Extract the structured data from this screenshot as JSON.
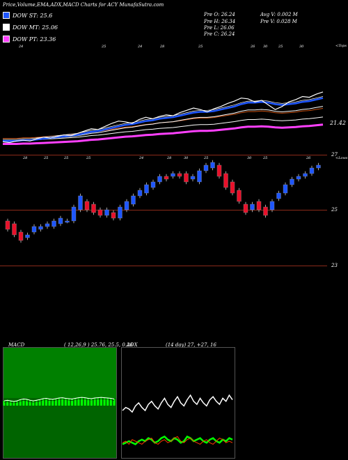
{
  "header": {
    "title": "Price,Volume,EMA,ADX,MACD Charts for ACY MunafaSutra.com",
    "open": "Pre  O: 26.24",
    "high": "Pre  H: 26.34",
    "low": "Pre  L: 26.06",
    "close": "Pre  C: 26.24",
    "avg_vol": "Avg V: 0.002  M",
    "pre_vol": "Pre  V: 0.028 M"
  },
  "legend": [
    {
      "label": "DOW ST: 25.6",
      "color": "#1e56ff"
    },
    {
      "label": "DOW MT: 25.06",
      "color": "#ffffff"
    },
    {
      "label": "DOW PT: 23.36",
      "color": "#ff40ff"
    }
  ],
  "ema_panel": {
    "date_labels": [
      "24",
      "25",
      "24",
      "28",
      "25",
      "26",
      "30",
      "25",
      "30"
    ],
    "price_label": "21.42",
    "corner_label": "<Tops"
  },
  "candle_panel": {
    "date_labels": [
      "28",
      "25",
      "25",
      "25",
      "24",
      "28",
      "30",
      "25",
      "30",
      "25",
      "26"
    ],
    "price_labels": [
      "27",
      "25",
      "23"
    ],
    "corner_label": "<Lows"
  },
  "macd": {
    "label": "MACD",
    "params": "( 12,26,9 ) 25.76,  25.5,  0.26"
  },
  "adx": {
    "label": "ADX",
    "params": "(14  day) 27,  +27,  16"
  },
  "colors": {
    "accent": "#1e56ff",
    "candle_up": "#1e56ff",
    "candle_down": "#e8102a",
    "support": "#8b2a1a",
    "macd_fill": "#00ff00",
    "adx_plus": "#00ff00",
    "adx_minus": "#ff3b00"
  },
  "chart_data": [
    {
      "type": "line",
      "name": "price_ema",
      "y": [
        20.4,
        20.3,
        20.5,
        20.6,
        20.5,
        20.8,
        21.0,
        20.9,
        21.1,
        21.3,
        21.2,
        21.5,
        21.8,
        22.1,
        22.0,
        22.4,
        22.8,
        23.1,
        23.0,
        22.8,
        23.3,
        23.6,
        23.4,
        23.7,
        23.9,
        23.8,
        24.2,
        24.5,
        24.8,
        24.6,
        24.3,
        24.7,
        25.0,
        25.4,
        25.7,
        26.1,
        26.0,
        25.6,
        25.8,
        25.2,
        24.6,
        25.0,
        25.6,
        25.9,
        26.3,
        26.2,
        26.6,
        26.9
      ],
      "ema_short": [
        20.5,
        20.5,
        20.5,
        20.6,
        20.6,
        20.7,
        20.8,
        20.9,
        21.0,
        21.1,
        21.2,
        21.3,
        21.5,
        21.7,
        21.8,
        22.0,
        22.2,
        22.4,
        22.6,
        22.7,
        22.9,
        23.1,
        23.2,
        23.4,
        23.5,
        23.6,
        23.8,
        24.0,
        24.2,
        24.3,
        24.3,
        24.4,
        24.6,
        24.8,
        25.0,
        25.3,
        25.5,
        25.5,
        25.6,
        25.5,
        25.3,
        25.2,
        25.3,
        25.4,
        25.6,
        25.7,
        25.9,
        26.1
      ]
    },
    {
      "type": "bar",
      "name": "candles",
      "x": [
        1,
        2,
        3,
        4,
        5,
        6,
        7,
        8,
        9,
        10,
        11,
        12,
        13,
        14,
        15,
        16,
        17,
        18,
        19,
        20,
        21,
        22,
        23,
        24,
        25,
        26,
        27,
        28,
        29,
        30,
        31,
        32,
        33,
        34,
        35,
        36,
        37,
        38,
        39,
        40,
        41,
        42,
        43,
        44,
        45,
        46,
        47,
        48
      ],
      "open": [
        24.6,
        24.5,
        24.2,
        24.0,
        24.2,
        24.3,
        24.4,
        24.4,
        24.5,
        24.6,
        24.6,
        25.0,
        25.3,
        25.2,
        25.0,
        24.8,
        24.9,
        24.7,
        25.0,
        25.2,
        25.5,
        25.6,
        25.8,
        26.0,
        26.2,
        26.2,
        26.3,
        26.3,
        26.1,
        26.0,
        26.4,
        26.5,
        26.6,
        26.3,
        26.0,
        25.7,
        25.2,
        25.0,
        25.3,
        25.1,
        25.0,
        25.4,
        25.6,
        25.9,
        26.1,
        26.2,
        26.3,
        26.5
      ],
      "close": [
        24.3,
        24.1,
        23.9,
        24.1,
        24.4,
        24.4,
        24.5,
        24.6,
        24.7,
        24.6,
        25.1,
        25.5,
        25.0,
        24.9,
        24.8,
        25.0,
        24.7,
        25.1,
        25.3,
        25.5,
        25.7,
        25.9,
        26.0,
        26.2,
        26.1,
        26.3,
        26.2,
        26.0,
        26.2,
        26.4,
        26.6,
        26.7,
        26.2,
        25.8,
        25.6,
        25.3,
        24.9,
        25.2,
        25.0,
        24.8,
        25.3,
        25.6,
        25.9,
        26.1,
        26.2,
        26.3,
        26.5,
        26.6
      ]
    },
    {
      "type": "area",
      "name": "macd",
      "y": [
        0.2,
        0.22,
        0.2,
        0.18,
        0.2,
        0.24,
        0.26,
        0.25,
        0.22,
        0.2,
        0.22,
        0.24,
        0.27,
        0.28,
        0.26,
        0.25,
        0.27,
        0.29,
        0.3,
        0.28,
        0.27,
        0.26,
        0.28,
        0.3,
        0.31,
        0.3,
        0.28,
        0.27,
        0.29,
        0.3,
        0.31,
        0.3,
        0.29,
        0.28,
        0.26
      ]
    },
    {
      "type": "line",
      "name": "adx",
      "series": [
        {
          "values": [
            30,
            32,
            31,
            29,
            33,
            35,
            32,
            30,
            34,
            36,
            33,
            31,
            35,
            38,
            34,
            32,
            36,
            39,
            35,
            33,
            37,
            40,
            36,
            34,
            38,
            35,
            33,
            37,
            39,
            36,
            34,
            38,
            36,
            40,
            37
          ]
        },
        {
          "values": [
            8,
            9,
            10,
            9,
            8,
            10,
            11,
            10,
            12,
            11,
            9,
            10,
            12,
            13,
            11,
            10,
            12,
            11,
            9,
            10,
            13,
            12,
            10,
            11,
            12,
            10,
            9,
            11,
            12,
            10,
            9,
            11,
            10,
            12,
            11
          ]
        },
        {
          "values": [
            9,
            10,
            8,
            11,
            10,
            9,
            8,
            10,
            11,
            12,
            9,
            8,
            10,
            11,
            9,
            10,
            12,
            13,
            10,
            9,
            11,
            12,
            10,
            9,
            8,
            10,
            11,
            9,
            8,
            10,
            12,
            11,
            9,
            10,
            9
          ]
        }
      ]
    }
  ]
}
